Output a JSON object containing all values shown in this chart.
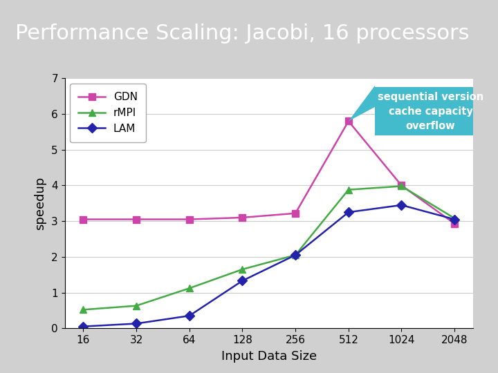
{
  "title": "Performance Scaling: Jacobi, 16 processors",
  "xlabel": "Input Data Size",
  "ylabel": "speedup",
  "background_color": "#d0d0d0",
  "plot_bg_color": "#ffffff",
  "x_labels": [
    "16",
    "32",
    "64",
    "128",
    "256",
    "512",
    "1024",
    "2048"
  ],
  "x_values": [
    16,
    32,
    64,
    128,
    256,
    512,
    1024,
    2048
  ],
  "GDN": {
    "y": [
      3.05,
      3.05,
      3.05,
      3.1,
      3.22,
      5.8,
      4.0,
      2.93
    ],
    "color": "#cc44aa",
    "marker": "s",
    "label": "GDN"
  },
  "rMPI": {
    "y": [
      0.52,
      0.63,
      1.12,
      1.65,
      2.05,
      3.88,
      3.98,
      3.08
    ],
    "color": "#44aa44",
    "marker": "^",
    "label": "rMPI"
  },
  "LAM": {
    "y": [
      0.05,
      0.13,
      0.35,
      1.33,
      2.05,
      3.25,
      3.45,
      3.05
    ],
    "color": "#2222aa",
    "marker": "D",
    "label": "LAM"
  },
  "ylim": [
    0,
    7
  ],
  "yticks": [
    0,
    1,
    2,
    3,
    4,
    5,
    6,
    7
  ],
  "annotation_text": "sequential version\ncache capacity\noverflow",
  "annotation_bg": "#44bbcc",
  "annotation_text_color": "#ffffff",
  "title_color": "#ffffff",
  "title_bg": "#888888"
}
